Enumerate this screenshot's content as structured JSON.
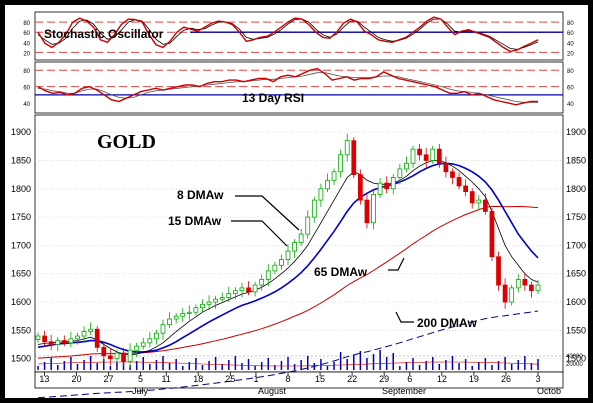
{
  "chart_data": {
    "type": "candlestick",
    "title": "GOLD",
    "stochastic": {
      "label": "Stochastic Oscillator",
      "yticks": [
        20,
        40,
        60,
        80
      ],
      "levels": [
        80,
        60,
        20
      ],
      "k": [
        60,
        38,
        30,
        40,
        55,
        80,
        88,
        82,
        70,
        45,
        40,
        55,
        75,
        86,
        85,
        80,
        55,
        35,
        30,
        42,
        60,
        70,
        66,
        62,
        70,
        78,
        82,
        80,
        75,
        60,
        42,
        45,
        50,
        52,
        60,
        70,
        80,
        88,
        86,
        75,
        60,
        50,
        48,
        60,
        78,
        86,
        80,
        62,
        55,
        45,
        42,
        40,
        45,
        50,
        60,
        70,
        82,
        90,
        86,
        70,
        55,
        62,
        65,
        60,
        55,
        50,
        40,
        30,
        22,
        25,
        32,
        38,
        45
      ],
      "d": [
        55,
        45,
        36,
        38,
        48,
        68,
        82,
        84,
        76,
        58,
        46,
        50,
        64,
        80,
        85,
        82,
        66,
        46,
        36,
        38,
        52,
        64,
        68,
        65,
        67,
        74,
        80,
        80,
        77,
        66,
        50,
        46,
        48,
        50,
        56,
        65,
        76,
        85,
        86,
        80,
        66,
        55,
        50,
        56,
        70,
        82,
        82,
        70,
        60,
        50,
        45,
        42,
        44,
        48,
        56,
        66,
        78,
        86,
        86,
        76,
        62,
        60,
        63,
        61,
        57,
        52,
        44,
        36,
        28,
        26,
        30,
        35,
        41
      ]
    },
    "rsi": {
      "label": "13 Day RSI",
      "yticks": [
        40,
        60,
        80
      ],
      "levels": [
        80,
        60,
        50
      ],
      "values": [
        60,
        55,
        52,
        53,
        50,
        52,
        58,
        60,
        56,
        50,
        44,
        42,
        46,
        50,
        54,
        56,
        58,
        56,
        58,
        60,
        62,
        62,
        60,
        64,
        66,
        66,
        68,
        68,
        66,
        68,
        70,
        70,
        66,
        72,
        74,
        72,
        76,
        80,
        82,
        76,
        68,
        70,
        72,
        68,
        70,
        70,
        72,
        78,
        74,
        70,
        68,
        66,
        64,
        62,
        60,
        56,
        52,
        52,
        54,
        50,
        52,
        48,
        44,
        42,
        40,
        38,
        40,
        42,
        42
      ],
      "signal": [
        58,
        57,
        55,
        54,
        52,
        52,
        55,
        57,
        57,
        54,
        50,
        47,
        46,
        47,
        50,
        53,
        55,
        56,
        57,
        58,
        59,
        60,
        61,
        62,
        63,
        64,
        65,
        66,
        66,
        67,
        68,
        69,
        69,
        70,
        71,
        72,
        73,
        75,
        77,
        77,
        75,
        73,
        72,
        71,
        71,
        71,
        72,
        73,
        73,
        72,
        70,
        68,
        66,
        64,
        62,
        60,
        57,
        55,
        54,
        53,
        52,
        50,
        48,
        46,
        44,
        42,
        41,
        41,
        41
      ]
    },
    "price": {
      "ylim": [
        1480,
        1925
      ],
      "yticks": [
        1500,
        1550,
        1600,
        1650,
        1700,
        1750,
        1800,
        1850,
        1900
      ],
      "close": [
        1540,
        1530,
        1525,
        1532,
        1528,
        1535,
        1540,
        1548,
        1552,
        1520,
        1505,
        1500,
        1510,
        1495,
        1515,
        1522,
        1528,
        1535,
        1545,
        1560,
        1570,
        1575,
        1580,
        1582,
        1590,
        1596,
        1600,
        1605,
        1608,
        1615,
        1620,
        1625,
        1618,
        1630,
        1640,
        1655,
        1665,
        1675,
        1690,
        1705,
        1720,
        1750,
        1780,
        1800,
        1815,
        1830,
        1860,
        1885,
        1825,
        1780,
        1740,
        1790,
        1810,
        1800,
        1820,
        1835,
        1845,
        1870,
        1860,
        1850,
        1870,
        1845,
        1830,
        1820,
        1805,
        1795,
        1775,
        1780,
        1760,
        1680,
        1630,
        1600,
        1625,
        1640,
        1630,
        1620,
        1630
      ],
      "dma8": [
        1525,
        1527,
        1528,
        1529,
        1530,
        1531,
        1532,
        1535,
        1538,
        1533,
        1525,
        1518,
        1512,
        1508,
        1507,
        1508,
        1511,
        1515,
        1521,
        1528,
        1538,
        1548,
        1557,
        1566,
        1574,
        1582,
        1588,
        1594,
        1599,
        1604,
        1609,
        1614,
        1617,
        1621,
        1626,
        1633,
        1641,
        1650,
        1660,
        1672,
        1685,
        1700,
        1720,
        1740,
        1760,
        1780,
        1800,
        1820,
        1830,
        1825,
        1815,
        1810,
        1808,
        1808,
        1810,
        1815,
        1822,
        1832,
        1840,
        1846,
        1850,
        1850,
        1846,
        1840,
        1832,
        1822,
        1812,
        1800,
        1786,
        1760,
        1730,
        1700,
        1680,
        1665,
        1650,
        1640,
        1635
      ],
      "dma15": [
        1520,
        1522,
        1524,
        1526,
        1527,
        1528,
        1529,
        1530,
        1532,
        1532,
        1529,
        1525,
        1520,
        1516,
        1513,
        1512,
        1512,
        1513,
        1515,
        1519,
        1524,
        1530,
        1537,
        1544,
        1551,
        1558,
        1565,
        1571,
        1577,
        1583,
        1589,
        1594,
        1598,
        1602,
        1607,
        1612,
        1618,
        1625,
        1633,
        1642,
        1652,
        1664,
        1678,
        1693,
        1709,
        1725,
        1742,
        1760,
        1775,
        1785,
        1792,
        1798,
        1802,
        1805,
        1808,
        1812,
        1817,
        1823,
        1830,
        1836,
        1841,
        1844,
        1845,
        1844,
        1841,
        1836,
        1830,
        1822,
        1812,
        1798,
        1780,
        1760,
        1740,
        1720,
        1705,
        1690,
        1678
      ]
    },
    "volume": {
      "yticks": [
        "40000",
        "20000"
      ]
    },
    "x_ticks": [
      "13",
      "20",
      "27",
      "5",
      "11",
      "18",
      "25",
      "1",
      "8",
      "15",
      "22",
      "29",
      "6",
      "12",
      "19",
      "26",
      "3"
    ],
    "months": [
      "July",
      "August",
      "September",
      "Octob"
    ],
    "annotations": {
      "dma8": "8 DMAw",
      "dma15": "15 DMAw",
      "dma65": "65 DMAw",
      "dma200": "200 DMAw"
    },
    "colors": {
      "candle_up": "#00aa00",
      "candle_down": "#dd0000",
      "dma8": "#000000",
      "dma15": "#0000cc",
      "dma65": "#cc0000",
      "dma200": "#000088",
      "stoch_k": "#cc0000",
      "stoch_d": "#000000",
      "level_line": "#0000aa",
      "dashed_level": "#dd4444"
    }
  }
}
